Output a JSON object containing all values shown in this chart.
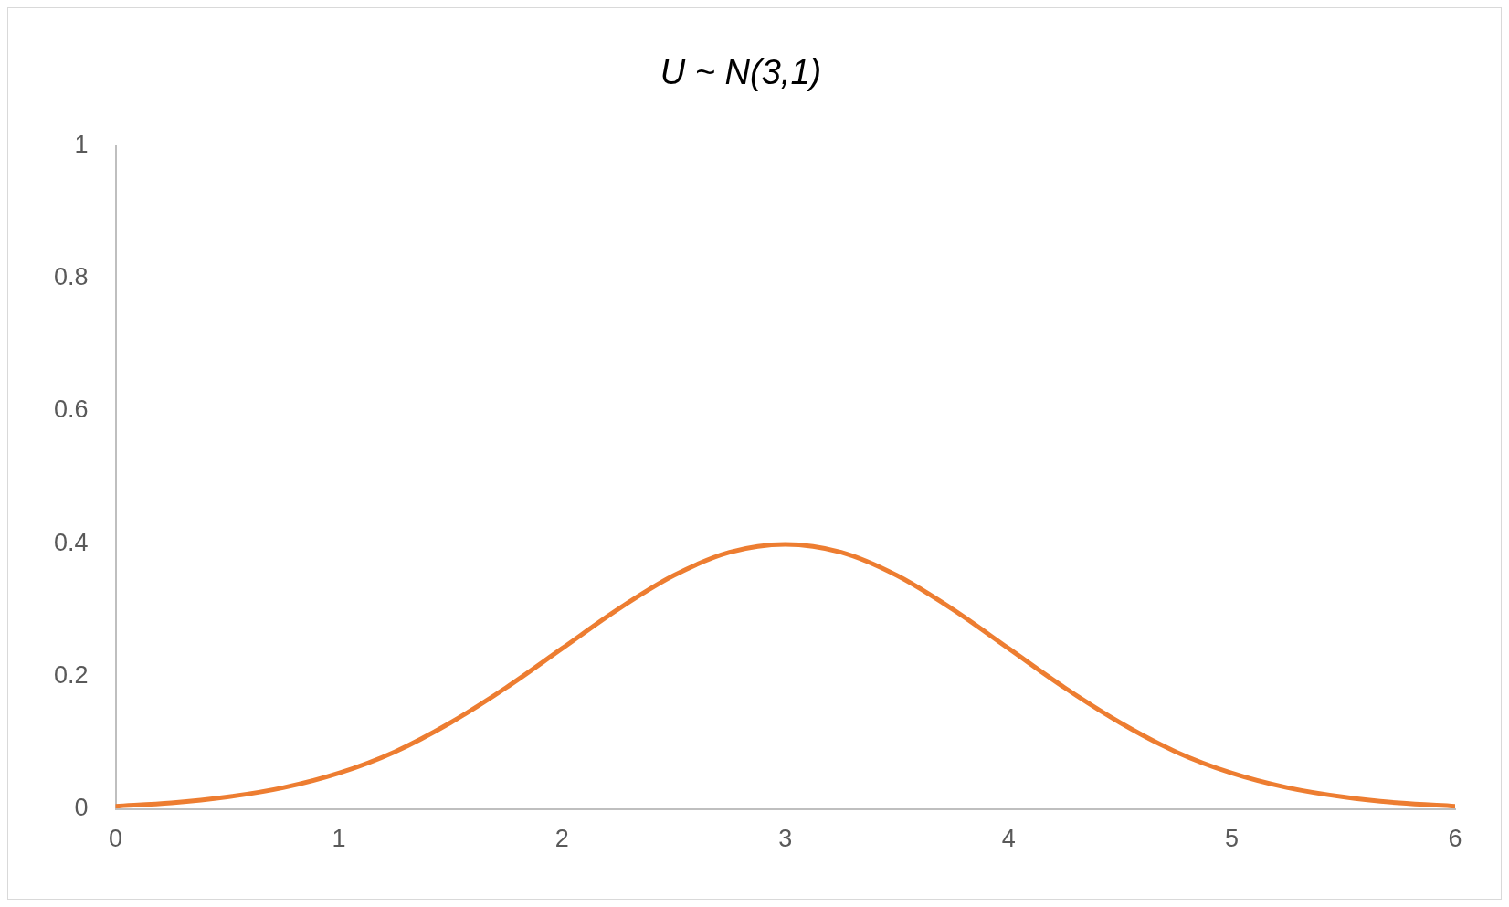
{
  "chart_data": {
    "type": "line",
    "title": "U ~ N(3,1)",
    "x": [
      0,
      0.25,
      0.5,
      0.75,
      1,
      1.25,
      1.5,
      1.75,
      2,
      2.25,
      2.5,
      2.75,
      3,
      3.25,
      3.5,
      3.75,
      4,
      4.25,
      4.5,
      4.75,
      5,
      5.25,
      5.5,
      5.75,
      6
    ],
    "series": [
      {
        "color": "#ed7d31",
        "values": [
          0.004,
          0.009,
          0.018,
          0.032,
          0.054,
          0.086,
          0.13,
          0.183,
          0.242,
          0.301,
          0.352,
          0.387,
          0.399,
          0.387,
          0.352,
          0.301,
          0.242,
          0.183,
          0.13,
          0.086,
          0.054,
          0.032,
          0.018,
          0.009,
          0.004
        ]
      }
    ],
    "xlim": [
      0,
      6
    ],
    "xticks": [
      0,
      1,
      2,
      3,
      4,
      5,
      6
    ],
    "ylim": [
      0,
      1
    ],
    "yticks": [
      0,
      0.2,
      0.4,
      0.6,
      0.8,
      1
    ],
    "marker": "none",
    "line_style": "solid"
  }
}
